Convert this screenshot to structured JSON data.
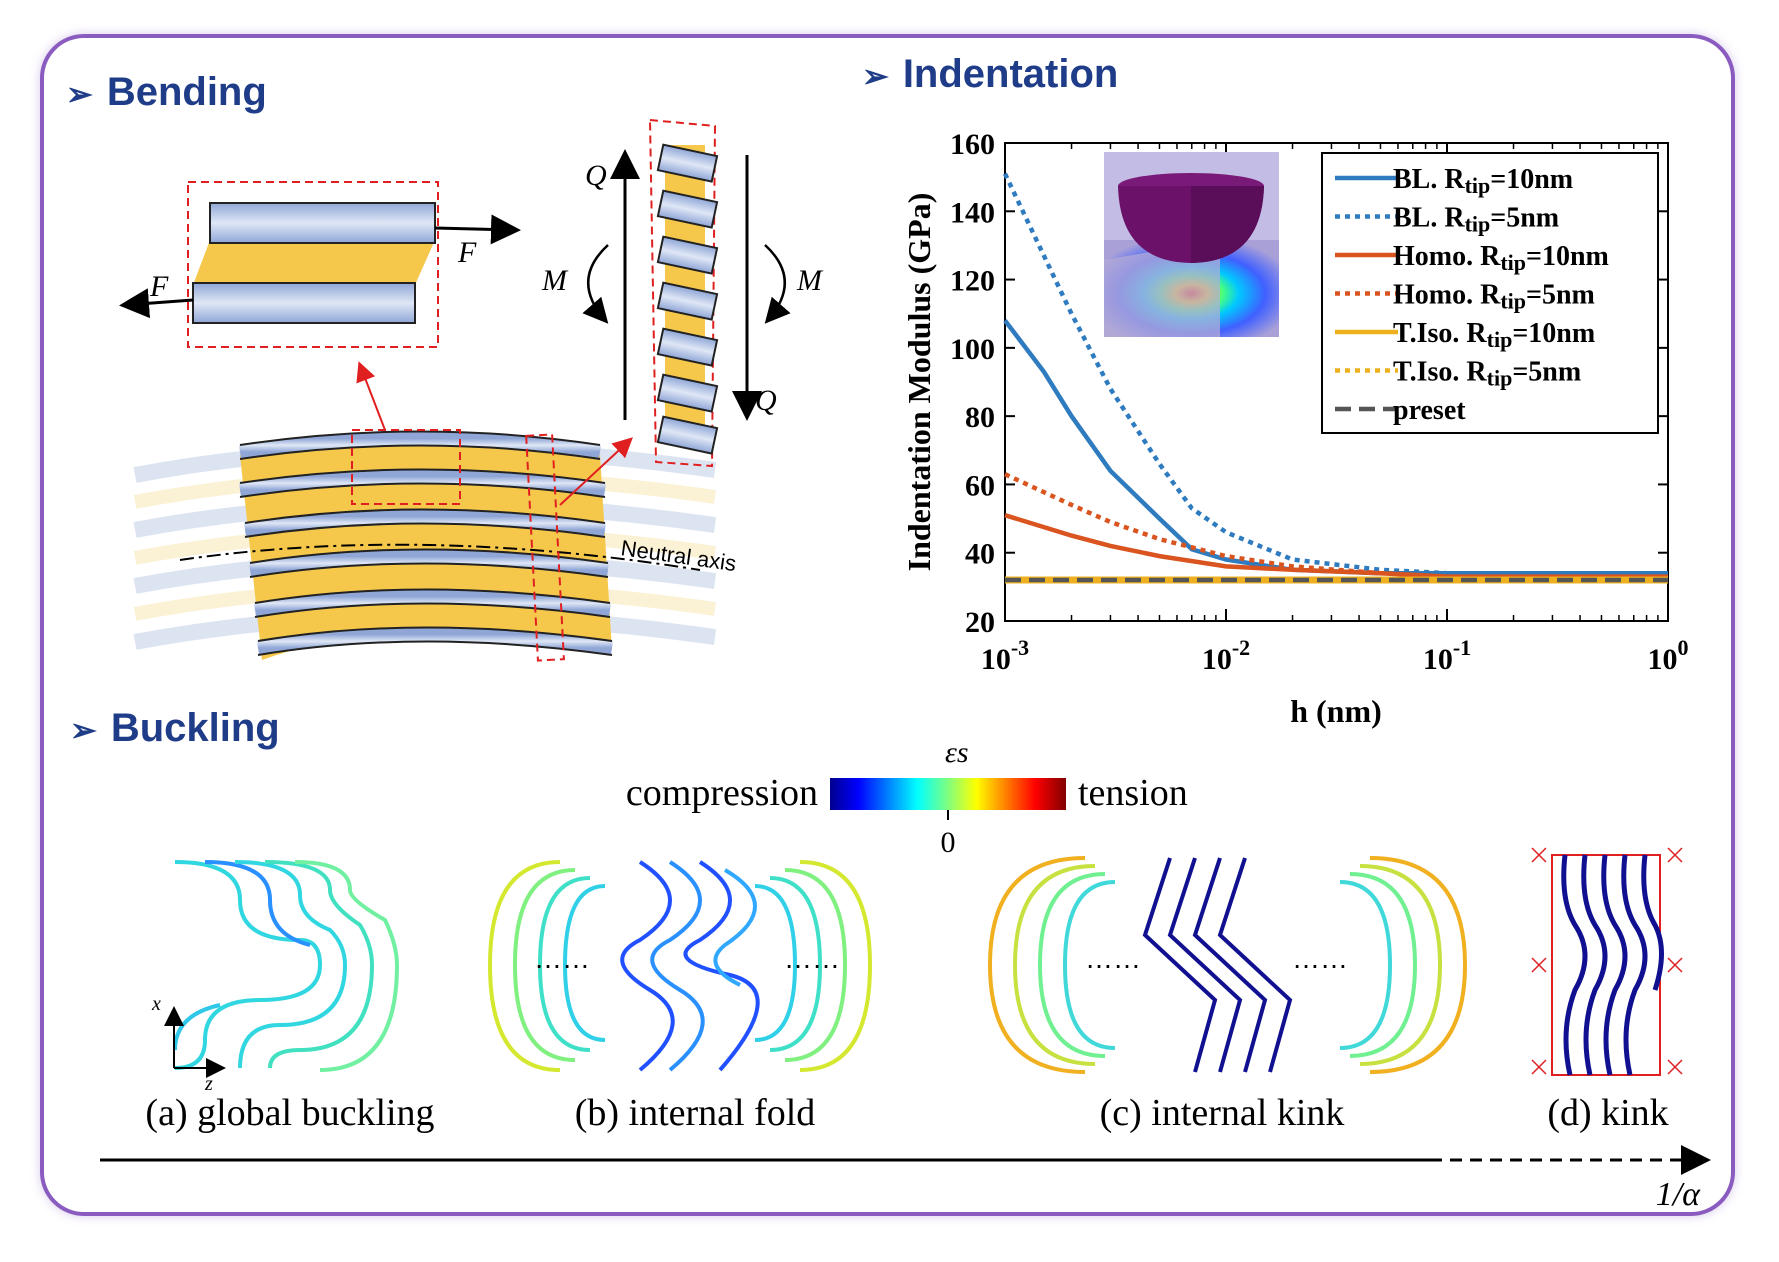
{
  "sections": {
    "bending": {
      "title": "Bending"
    },
    "indentation": {
      "title": "Indentation"
    },
    "buckling": {
      "title": "Buckling"
    }
  },
  "bending_diagram": {
    "force_label": "F",
    "moment_label": "M",
    "shear_label": "Q",
    "neutral_axis_label": "Neutral axis"
  },
  "colors": {
    "frame": "#8a5cc0",
    "title": "#1f3c88",
    "bl": "#2f7bbf",
    "homo": "#d9541e",
    "tiso": "#edb120",
    "preset": "#555555",
    "layer_blue": "#b8c8e6",
    "layer_yellow": "#f5c84c"
  },
  "chart_data": {
    "type": "line",
    "xlabel": "h (nm)",
    "ylabel": "Indentation Modulus (GPa)",
    "xscale": "log",
    "xlim": [
      0.001,
      1
    ],
    "ylim": [
      20,
      160
    ],
    "xticks": [
      "10-3",
      "10-2",
      "10-1",
      "100"
    ],
    "yticks": [
      20,
      40,
      60,
      80,
      100,
      120,
      140,
      160
    ],
    "legend_position": "top-right",
    "series": [
      {
        "name": "BL. Rtip=10nm",
        "style": "solid",
        "color": "#2f7bbf",
        "x": [
          0.001,
          0.0015,
          0.002,
          0.003,
          0.005,
          0.007,
          0.01,
          0.02,
          0.05,
          0.1,
          1
        ],
        "y": [
          108,
          93,
          80,
          64,
          50,
          41,
          38,
          35,
          34,
          34,
          34
        ]
      },
      {
        "name": "BL. Rtip=5nm",
        "style": "dotted",
        "color": "#2f7bbf",
        "x": [
          0.001,
          0.0015,
          0.002,
          0.003,
          0.005,
          0.007,
          0.01,
          0.02,
          0.05,
          0.1,
          1
        ],
        "y": [
          151,
          127,
          110,
          88,
          66,
          53,
          46,
          38,
          35,
          34,
          34
        ]
      },
      {
        "name": "Homo. Rtip=10nm",
        "style": "solid",
        "color": "#d9541e",
        "x": [
          0.001,
          0.002,
          0.003,
          0.005,
          0.01,
          0.02,
          0.05,
          0.1,
          1
        ],
        "y": [
          51,
          45,
          42,
          39,
          36,
          35,
          34,
          33,
          33
        ]
      },
      {
        "name": "Homo. Rtip=5nm",
        "style": "dotted",
        "color": "#d9541e",
        "x": [
          0.001,
          0.002,
          0.003,
          0.005,
          0.01,
          0.02,
          0.05,
          0.1,
          1
        ],
        "y": [
          63,
          54,
          49,
          44,
          39,
          36,
          34,
          33,
          33
        ]
      },
      {
        "name": "T.Iso. Rtip=10nm",
        "style": "solid",
        "color": "#edb120",
        "x": [
          0.001,
          1
        ],
        "y": [
          32,
          32
        ]
      },
      {
        "name": "T.Iso. Rtip=5nm",
        "style": "dotted",
        "color": "#edb120",
        "x": [
          0.001,
          1
        ],
        "y": [
          32,
          32
        ]
      },
      {
        "name": "preset",
        "style": "dashed",
        "color": "#555555",
        "x": [
          0.001,
          1
        ],
        "y": [
          32,
          32
        ]
      }
    ]
  },
  "colorbar": {
    "symbol": "εs",
    "left_label": "compression",
    "right_label": "tension",
    "zero_label": "0"
  },
  "buckling_modes": [
    {
      "label": "(a) global buckling"
    },
    {
      "label": "(b) internal fold"
    },
    {
      "label": "(c) internal kink"
    },
    {
      "label": "(d) kink"
    }
  ],
  "axes_labels": {
    "x": "x",
    "z": "z"
  },
  "progress_axis": {
    "label": "1/α"
  }
}
